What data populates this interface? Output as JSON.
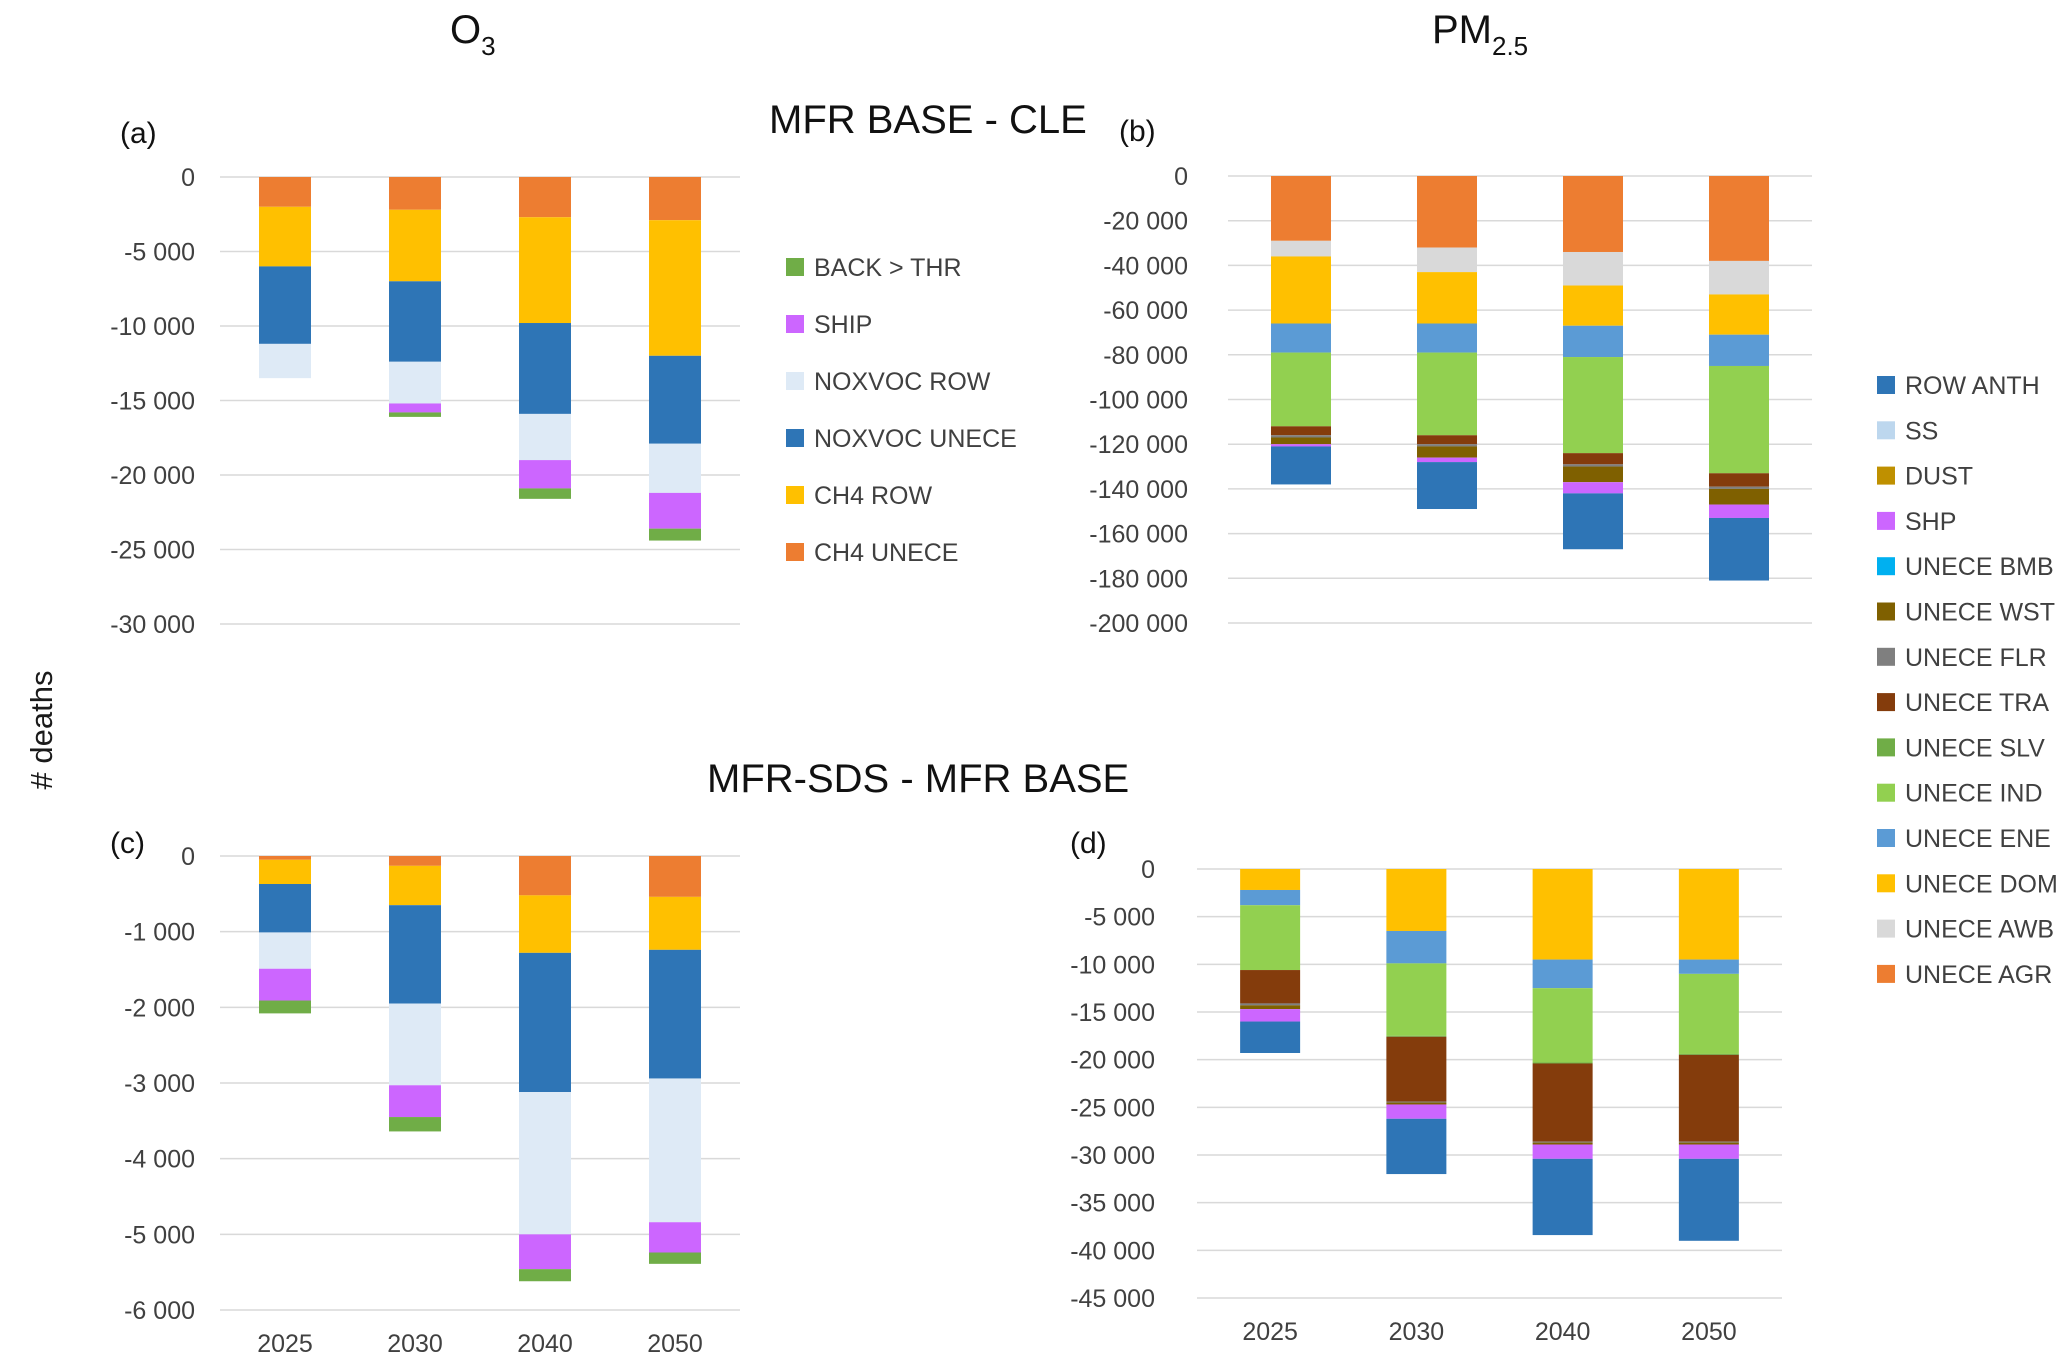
{
  "figure": {
    "col_title_left": "O3",
    "col_title_right_main": "PM",
    "col_title_right_sub": "2.5",
    "row_title_top": "MFR BASE - CLE",
    "row_title_bottom": "MFR-SDS - MFR BASE",
    "y_label": "# deaths"
  },
  "chart_data": [
    {
      "id": "a",
      "panel_label": "(a)",
      "type": "stacked-bar",
      "categories": [
        "2025",
        "2030",
        "2040",
        "2050"
      ],
      "ylim": [
        -30000,
        0
      ],
      "ytick_step": 5000,
      "show_xticks": false,
      "series": [
        {
          "name": "CH4 UNECE",
          "color": "#ED7D31",
          "values": [
            -2000,
            -2200,
            -2700,
            -2900
          ]
        },
        {
          "name": "CH4 ROW",
          "color": "#FFC000",
          "values": [
            -4000,
            -4800,
            -7100,
            -9100
          ]
        },
        {
          "name": "NOXVOC UNECE",
          "color": "#2E75B6",
          "values": [
            -5200,
            -5400,
            -6100,
            -5900
          ]
        },
        {
          "name": "NOXVOC ROW",
          "color": "#DEEAF6",
          "values": [
            -2300,
            -2800,
            -3100,
            -3300
          ]
        },
        {
          "name": "SHIP",
          "color": "#CC66FF",
          "values": [
            0,
            -600,
            -1900,
            -2400
          ]
        },
        {
          "name": "BACK > THR",
          "color": "#70AD47",
          "values": [
            0,
            -300,
            -700,
            -800
          ]
        }
      ],
      "legend_order": [
        "BACK > THR",
        "SHIP",
        "NOXVOC ROW",
        "NOXVOC UNECE",
        "CH4 ROW",
        "CH4 UNECE"
      ]
    },
    {
      "id": "b",
      "panel_label": "(b)",
      "type": "stacked-bar",
      "categories": [
        "2025",
        "2030",
        "2040",
        "2050"
      ],
      "ylim": [
        -200000,
        0
      ],
      "ytick_step": 20000,
      "show_xticks": false,
      "series": [
        {
          "name": "UNECE AGR",
          "color": "#ED7D31",
          "values": [
            -29000,
            -32000,
            -34000,
            -38000
          ]
        },
        {
          "name": "UNECE AWB",
          "color": "#D9D9D9",
          "values": [
            -7000,
            -11000,
            -15000,
            -15000
          ]
        },
        {
          "name": "UNECE DOM",
          "color": "#FFC000",
          "values": [
            -30000,
            -23000,
            -18000,
            -18000
          ]
        },
        {
          "name": "UNECE ENE",
          "color": "#5B9BD5",
          "values": [
            -13000,
            -13000,
            -14000,
            -14000
          ]
        },
        {
          "name": "UNECE IND",
          "color": "#92D050",
          "values": [
            -33000,
            -37000,
            -43000,
            -48000
          ]
        },
        {
          "name": "UNECE SLV",
          "color": "#70AD47",
          "values": [
            0,
            0,
            0,
            0
          ]
        },
        {
          "name": "UNECE TRA",
          "color": "#843C0C",
          "values": [
            -4000,
            -4000,
            -5000,
            -6000
          ]
        },
        {
          "name": "UNECE FLR",
          "color": "#7F7F7F",
          "values": [
            -1000,
            -1000,
            -1000,
            -1000
          ]
        },
        {
          "name": "UNECE WST",
          "color": "#7F6000",
          "values": [
            -3000,
            -5000,
            -7000,
            -7000
          ]
        },
        {
          "name": "UNECE BMB",
          "color": "#00B0F0",
          "values": [
            0,
            0,
            0,
            0
          ]
        },
        {
          "name": "SHP",
          "color": "#CC66FF",
          "values": [
            -1000,
            -2000,
            -5000,
            -6000
          ]
        },
        {
          "name": "DUST",
          "color": "#BF9000",
          "values": [
            0,
            0,
            0,
            0
          ]
        },
        {
          "name": "SS",
          "color": "#BDD7EE",
          "values": [
            0,
            0,
            0,
            0
          ]
        },
        {
          "name": "ROW ANTH",
          "color": "#2E75B6",
          "values": [
            -17000,
            -21000,
            -25000,
            -28000
          ]
        }
      ],
      "legend_order": [
        "ROW ANTH",
        "SS",
        "DUST",
        "SHP",
        "UNECE BMB",
        "UNECE WST",
        "UNECE FLR",
        "UNECE TRA",
        "UNECE SLV",
        "UNECE IND",
        "UNECE ENE",
        "UNECE DOM",
        "UNECE AWB",
        "UNECE AGR"
      ]
    },
    {
      "id": "c",
      "panel_label": "(c)",
      "type": "stacked-bar",
      "categories": [
        "2025",
        "2030",
        "2040",
        "2050"
      ],
      "ylim": [
        -6000,
        0
      ],
      "ytick_step": 1000,
      "show_xticks": true,
      "series": [
        {
          "name": "CH4 UNECE",
          "color": "#ED7D31",
          "values": [
            -50,
            -130,
            -520,
            -540
          ]
        },
        {
          "name": "CH4 ROW",
          "color": "#FFC000",
          "values": [
            -320,
            -520,
            -760,
            -700
          ]
        },
        {
          "name": "NOXVOC UNECE",
          "color": "#2E75B6",
          "values": [
            -640,
            -1300,
            -1840,
            -1700
          ]
        },
        {
          "name": "NOXVOC ROW",
          "color": "#DEEAF6",
          "values": [
            -480,
            -1080,
            -1880,
            -1900
          ]
        },
        {
          "name": "SHIP",
          "color": "#CC66FF",
          "values": [
            -420,
            -420,
            -460,
            -400
          ]
        },
        {
          "name": "BACK > THR",
          "color": "#70AD47",
          "values": [
            -170,
            -190,
            -160,
            -150
          ]
        }
      ]
    },
    {
      "id": "d",
      "panel_label": "(d)",
      "type": "stacked-bar",
      "categories": [
        "2025",
        "2030",
        "2040",
        "2050"
      ],
      "ylim": [
        -45000,
        0
      ],
      "ytick_step": 5000,
      "show_xticks": true,
      "series": [
        {
          "name": "UNECE DOM",
          "color": "#FFC000",
          "values": [
            -2200,
            -6500,
            -9500,
            -9500
          ]
        },
        {
          "name": "UNECE ENE",
          "color": "#5B9BD5",
          "values": [
            -1600,
            -3400,
            -3000,
            -1500
          ]
        },
        {
          "name": "UNECE IND",
          "color": "#92D050",
          "values": [
            -6800,
            -7600,
            -7800,
            -8400
          ]
        },
        {
          "name": "UNECE SLV",
          "color": "#70AD47",
          "values": [
            0,
            -100,
            -100,
            -100
          ]
        },
        {
          "name": "UNECE TRA",
          "color": "#843C0C",
          "values": [
            -3500,
            -6800,
            -8200,
            -9100
          ]
        },
        {
          "name": "UNECE FLR",
          "color": "#7F7F7F",
          "values": [
            -200,
            -100,
            -100,
            -100
          ]
        },
        {
          "name": "UNECE WST",
          "color": "#7F6000",
          "values": [
            -400,
            -200,
            -200,
            -200
          ]
        },
        {
          "name": "SHP",
          "color": "#CC66FF",
          "values": [
            -1300,
            -1500,
            -1500,
            -1500
          ]
        },
        {
          "name": "ROW ANTH",
          "color": "#2E75B6",
          "values": [
            -3300,
            -5800,
            -8000,
            -8600
          ]
        }
      ]
    }
  ]
}
